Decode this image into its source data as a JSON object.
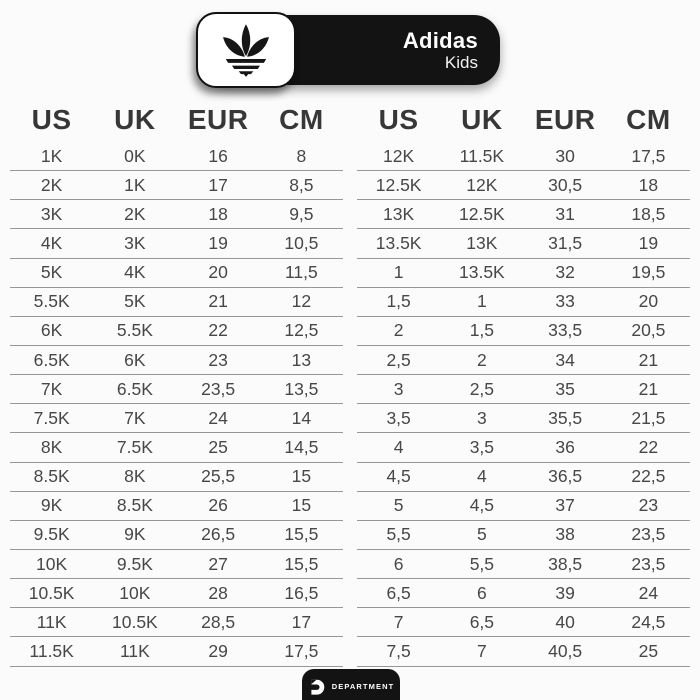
{
  "header": {
    "brand": "Adidas",
    "brand_sub": "Kids",
    "logo": "adidas-trefoil-icon"
  },
  "chart_data": {
    "type": "table",
    "title": "Adidas Kids shoe size conversion chart",
    "columns": [
      "US",
      "UK",
      "EUR",
      "CM"
    ],
    "left_rows": [
      [
        "1K",
        "0K",
        "16",
        "8"
      ],
      [
        "2K",
        "1K",
        "17",
        "8,5"
      ],
      [
        "3K",
        "2K",
        "18",
        "9,5"
      ],
      [
        "4K",
        "3K",
        "19",
        "10,5"
      ],
      [
        "5K",
        "4K",
        "20",
        "11,5"
      ],
      [
        "5.5K",
        "5K",
        "21",
        "12"
      ],
      [
        "6K",
        "5.5K",
        "22",
        "12,5"
      ],
      [
        "6.5K",
        "6K",
        "23",
        "13"
      ],
      [
        "7K",
        "6.5K",
        "23,5",
        "13,5"
      ],
      [
        "7.5K",
        "7K",
        "24",
        "14"
      ],
      [
        "8K",
        "7.5K",
        "25",
        "14,5"
      ],
      [
        "8.5K",
        "8K",
        "25,5",
        "15"
      ],
      [
        "9K",
        "8.5K",
        "26",
        "15"
      ],
      [
        "9.5K",
        "9K",
        "26,5",
        "15,5"
      ],
      [
        "10K",
        "9.5K",
        "27",
        "15,5"
      ],
      [
        "10.5K",
        "10K",
        "28",
        "16,5"
      ],
      [
        "11K",
        "10.5K",
        "28,5",
        "17"
      ],
      [
        "11.5K",
        "11K",
        "29",
        "17,5"
      ]
    ],
    "right_rows": [
      [
        "12K",
        "11.5K",
        "30",
        "17,5"
      ],
      [
        "12.5K",
        "12K",
        "30,5",
        "18"
      ],
      [
        "13K",
        "12.5K",
        "31",
        "18,5"
      ],
      [
        "13.5K",
        "13K",
        "31,5",
        "19"
      ],
      [
        "1",
        "13.5K",
        "32",
        "19,5"
      ],
      [
        "1,5",
        "1",
        "33",
        "20"
      ],
      [
        "2",
        "1,5",
        "33,5",
        "20,5"
      ],
      [
        "2,5",
        "2",
        "34",
        "21"
      ],
      [
        "3",
        "2,5",
        "35",
        "21"
      ],
      [
        "3,5",
        "3",
        "35,5",
        "21,5"
      ],
      [
        "4",
        "3,5",
        "36",
        "22"
      ],
      [
        "4,5",
        "4",
        "36,5",
        "22,5"
      ],
      [
        "5",
        "4,5",
        "37",
        "23"
      ],
      [
        "5,5",
        "5",
        "38",
        "23,5"
      ],
      [
        "6",
        "5,5",
        "38,5",
        "23,5"
      ],
      [
        "6,5",
        "6",
        "39",
        "24"
      ],
      [
        "7",
        "6,5",
        "40",
        "24,5"
      ],
      [
        "7,5",
        "7",
        "40,5",
        "25"
      ]
    ]
  },
  "footer": {
    "brand": "DEPARTMENT",
    "logo": "department-d-icon"
  },
  "colors": {
    "badge_black": "#131313",
    "text_dark": "#474747",
    "header_text": "#373737",
    "row_line": "#979797",
    "background": "#fbfbfb",
    "white": "#ffffff"
  }
}
